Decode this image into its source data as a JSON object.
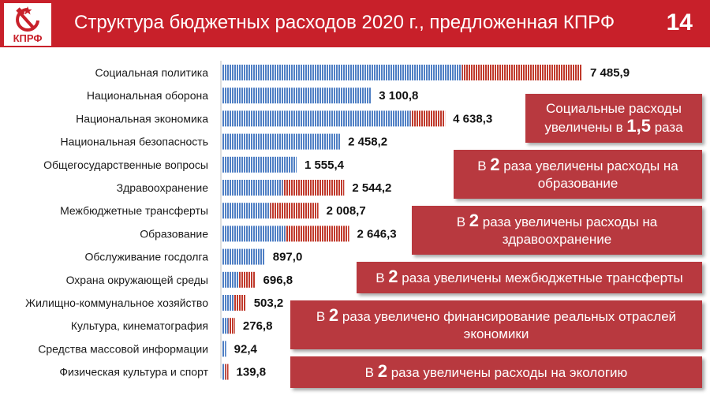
{
  "header": {
    "title": "Структура бюджетных расходов 2020 г., предложенная КПРФ",
    "page_number": "14",
    "logo_text": "КПРФ"
  },
  "colors": {
    "brand_red": "#c8202a",
    "bar_base_blue": "#4f7fc4",
    "bar_increase_red": "#c0392b",
    "callout_bg": "#b8393f"
  },
  "chart_data": {
    "type": "bar",
    "orientation": "horizontal",
    "stacked": true,
    "categories": [
      "Социальная политика",
      "Национальная оборона",
      "Национальная экономика",
      "Национальная безопасность",
      "Общегосударственные вопросы",
      "Здравоохранение",
      "Межбюджетные трансферты",
      "Образование",
      "Обслуживание госдолга",
      "Охрана окружающей среды",
      "Жилищно-коммунальное хозяйство",
      "Культура, кинематография",
      "Средства массовой информации",
      "Физическая культура и спорт"
    ],
    "series": [
      {
        "values": [
          4990.6,
          3100.8,
          3924.7,
          2458.2,
          1555.4,
          1272.1,
          1004.4,
          1323.2,
          897.0,
          348.4,
          251.6,
          138.4,
          92.4,
          69.9
        ]
      },
      {
        "values": [
          2495.3,
          0,
          713.6,
          0,
          0,
          1272.1,
          1004.3,
          1323.1,
          0,
          348.4,
          251.6,
          138.4,
          0,
          69.9
        ]
      }
    ],
    "totals": [
      7485.9,
      3100.8,
      4638.3,
      2458.2,
      1555.4,
      2544.2,
      2008.7,
      2646.3,
      897.0,
      696.8,
      503.2,
      276.8,
      92.4,
      139.8
    ],
    "total_labels": [
      "7 485,9",
      "3 100,8",
      "4 638,3",
      "2 458,2",
      "1 555,4",
      "2 544,2",
      "2 008,7",
      "2 646,3",
      "897,0",
      "696,8",
      "503,2",
      "276,8",
      "92,4",
      "139,8"
    ],
    "xlim": [
      0,
      8000
    ],
    "grid": false,
    "legend": "none"
  },
  "callouts": [
    {
      "pre": "Социальные расходы увеличены в ",
      "big": "1,5",
      "post": " раза"
    },
    {
      "pre": "В ",
      "big": "2",
      "post": " раза увеличены расходы на образование"
    },
    {
      "pre": "В ",
      "big": "2",
      "post": " раза увеличены расходы на здравоохранение"
    },
    {
      "pre": "В ",
      "big": "2",
      "post": " раза увеличены межбюджетные трансферты"
    },
    {
      "pre": "В ",
      "big": "2",
      "post": " раза увеличено финансирование реальных отраслей экономики"
    },
    {
      "pre": "В ",
      "big": "2",
      "post": " раза увеличены расходы на экологию"
    }
  ]
}
